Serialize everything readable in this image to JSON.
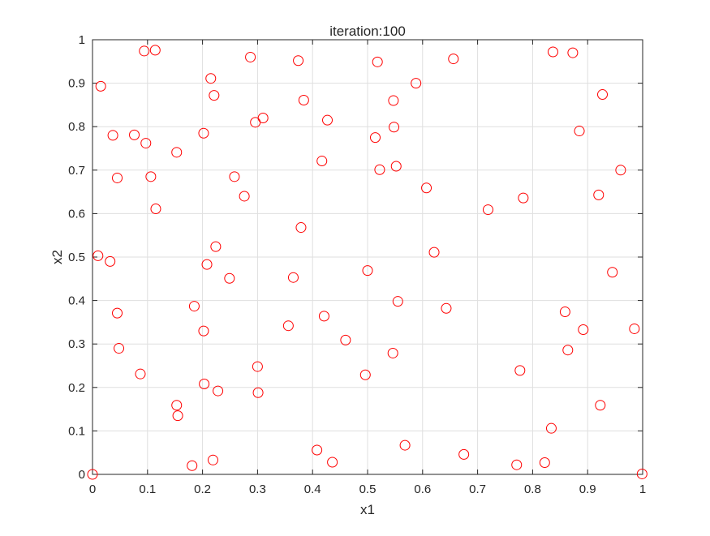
{
  "chart_data": {
    "type": "scatter",
    "title": "iteration:100",
    "xlabel": "x1",
    "ylabel": "x2",
    "xlim": [
      0,
      1
    ],
    "ylim": [
      0,
      1
    ],
    "xticks": [
      0,
      0.1,
      0.2,
      0.3,
      0.4,
      0.5,
      0.6,
      0.7,
      0.8,
      0.9,
      1
    ],
    "yticks": [
      0,
      0.1,
      0.2,
      0.3,
      0.4,
      0.5,
      0.6,
      0.7,
      0.8,
      0.9,
      1
    ],
    "xtick_labels": [
      "0",
      "0.1",
      "0.2",
      "0.3",
      "0.4",
      "0.5",
      "0.6",
      "0.7",
      "0.8",
      "0.9",
      "1"
    ],
    "ytick_labels": [
      "0",
      "0.1",
      "0.2",
      "0.3",
      "0.4",
      "0.5",
      "0.6",
      "0.7",
      "0.8",
      "0.9",
      "1"
    ],
    "grid": true,
    "marker": "circle-open",
    "marker_color": "#ff0000",
    "points": [
      [
        0.0,
        0.0
      ],
      [
        0.015,
        0.893
      ],
      [
        0.01,
        0.503
      ],
      [
        0.032,
        0.49
      ],
      [
        0.037,
        0.78
      ],
      [
        0.045,
        0.682
      ],
      [
        0.045,
        0.371
      ],
      [
        0.048,
        0.29
      ],
      [
        0.076,
        0.781
      ],
      [
        0.087,
        0.231
      ],
      [
        0.094,
        0.974
      ],
      [
        0.097,
        0.762
      ],
      [
        0.106,
        0.685
      ],
      [
        0.114,
        0.976
      ],
      [
        0.115,
        0.611
      ],
      [
        0.153,
        0.741
      ],
      [
        0.153,
        0.159
      ],
      [
        0.155,
        0.135
      ],
      [
        0.181,
        0.02
      ],
      [
        0.185,
        0.387
      ],
      [
        0.202,
        0.785
      ],
      [
        0.202,
        0.33
      ],
      [
        0.203,
        0.208
      ],
      [
        0.208,
        0.483
      ],
      [
        0.215,
        0.911
      ],
      [
        0.219,
        0.033
      ],
      [
        0.221,
        0.872
      ],
      [
        0.224,
        0.524
      ],
      [
        0.228,
        0.192
      ],
      [
        0.249,
        0.451
      ],
      [
        0.258,
        0.685
      ],
      [
        0.276,
        0.64
      ],
      [
        0.287,
        0.96
      ],
      [
        0.296,
        0.81
      ],
      [
        0.3,
        0.248
      ],
      [
        0.301,
        0.188
      ],
      [
        0.31,
        0.82
      ],
      [
        0.356,
        0.342
      ],
      [
        0.365,
        0.453
      ],
      [
        0.374,
        0.952
      ],
      [
        0.379,
        0.568
      ],
      [
        0.384,
        0.861
      ],
      [
        0.408,
        0.056
      ],
      [
        0.417,
        0.721
      ],
      [
        0.421,
        0.364
      ],
      [
        0.427,
        0.815
      ],
      [
        0.436,
        0.028
      ],
      [
        0.46,
        0.309
      ],
      [
        0.496,
        0.229
      ],
      [
        0.5,
        0.469
      ],
      [
        0.514,
        0.775
      ],
      [
        0.518,
        0.949
      ],
      [
        0.522,
        0.701
      ],
      [
        0.546,
        0.279
      ],
      [
        0.547,
        0.86
      ],
      [
        0.548,
        0.799
      ],
      [
        0.552,
        0.709
      ],
      [
        0.555,
        0.398
      ],
      [
        0.568,
        0.067
      ],
      [
        0.588,
        0.9
      ],
      [
        0.607,
        0.659
      ],
      [
        0.621,
        0.511
      ],
      [
        0.643,
        0.382
      ],
      [
        0.656,
        0.956
      ],
      [
        0.675,
        0.046
      ],
      [
        0.719,
        0.609
      ],
      [
        0.771,
        0.022
      ],
      [
        0.777,
        0.239
      ],
      [
        0.783,
        0.636
      ],
      [
        0.822,
        0.027
      ],
      [
        0.834,
        0.106
      ],
      [
        0.837,
        0.972
      ],
      [
        0.859,
        0.374
      ],
      [
        0.864,
        0.286
      ],
      [
        0.873,
        0.97
      ],
      [
        0.885,
        0.79
      ],
      [
        0.892,
        0.333
      ],
      [
        0.92,
        0.643
      ],
      [
        0.923,
        0.159
      ],
      [
        0.927,
        0.874
      ],
      [
        0.945,
        0.465
      ],
      [
        0.96,
        0.7
      ],
      [
        0.985,
        0.335
      ],
      [
        0.999,
        0.001
      ]
    ]
  }
}
